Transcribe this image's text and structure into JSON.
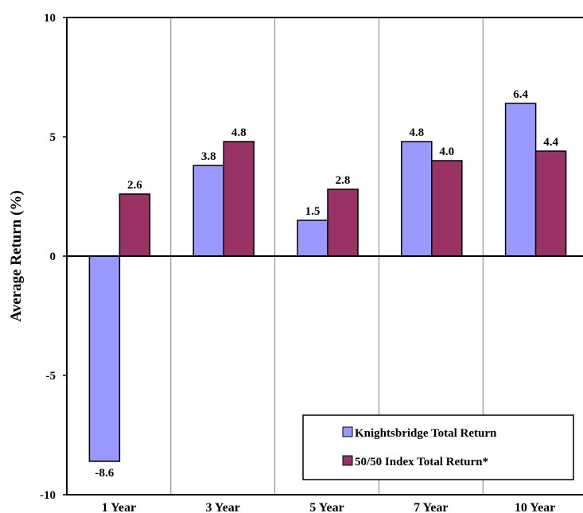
{
  "chart_data": {
    "type": "bar",
    "title": "",
    "xlabel": "",
    "ylabel": "Average Return (%)",
    "ylim": [
      -10,
      10
    ],
    "yticks": [
      "10",
      "5",
      "0",
      "-5",
      "-10"
    ],
    "categories": [
      "1 Year",
      "3 Year",
      "5 Year",
      "7 Year",
      "10 Year"
    ],
    "series": [
      {
        "name": "Knightsbridge Total Return",
        "color": "#9999ff",
        "values": [
          -8.6,
          3.8,
          1.5,
          4.8,
          6.4
        ],
        "labels": [
          "-8.6",
          "3.8",
          "1.5",
          "4.8",
          "6.4"
        ]
      },
      {
        "name": "50/50 Index Total Return*",
        "color": "#993366",
        "values": [
          2.6,
          4.8,
          2.8,
          4.0,
          4.4
        ],
        "labels": [
          "2.6",
          "4.8",
          "2.8",
          "4.0",
          "4.4"
        ]
      }
    ],
    "grid": "vertical separators between categories",
    "legend": "bottom-right"
  }
}
